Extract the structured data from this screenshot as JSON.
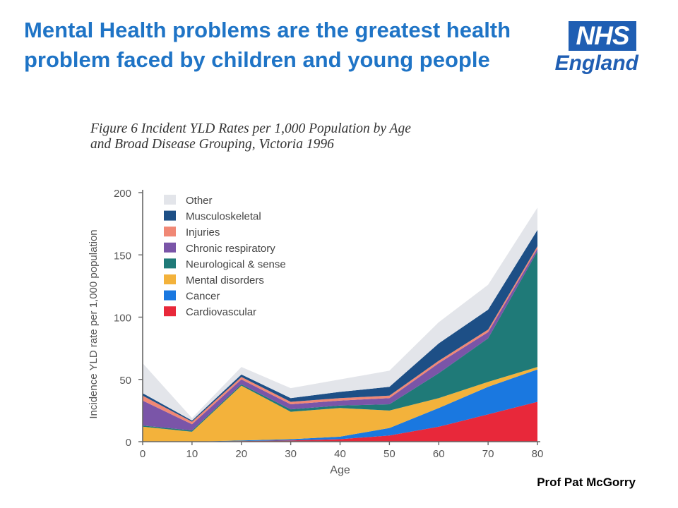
{
  "slide": {
    "title": "Mental Health problems are the greatest health problem faced by children and young people",
    "credit": "Prof Pat McGorry"
  },
  "logo": {
    "box_text": "NHS",
    "sub_text": "England",
    "color": "#1f5eb3"
  },
  "chart_data": {
    "type": "area",
    "stacked": true,
    "title": "Figure 6 Incident YLD Rates per 1,000 Population by Age and Broad Disease Grouping, Victoria 1996",
    "title_lines": [
      "Figure 6 Incident YLD Rates per 1,000 Population by Age",
      "and Broad Disease Grouping, Victoria 1996"
    ],
    "xlabel": "Age",
    "ylabel": "Incidence YLD rate per 1,000 population",
    "x": [
      0,
      10,
      20,
      30,
      40,
      50,
      60,
      70,
      80
    ],
    "xlim": [
      0,
      80
    ],
    "ylim": [
      0,
      200
    ],
    "xticks": [
      0,
      10,
      20,
      30,
      40,
      50,
      60,
      70,
      80
    ],
    "yticks": [
      0,
      50,
      100,
      150,
      200
    ],
    "grid": false,
    "legend_position": "top-left",
    "series": [
      {
        "name": "Cardiovascular",
        "color": "#e8283a",
        "values": [
          0,
          0,
          0.5,
          1,
          2,
          5,
          12,
          22,
          32
        ]
      },
      {
        "name": "Cancer",
        "color": "#1a78e0",
        "values": [
          0,
          0,
          0.5,
          1,
          2,
          6,
          15,
          22,
          26
        ]
      },
      {
        "name": "Mental disorders",
        "color": "#f3b23b",
        "values": [
          12,
          8,
          44,
          22,
          23,
          14,
          8,
          4,
          2
        ]
      },
      {
        "name": "Neurological & sense",
        "color": "#1f7a78",
        "values": [
          1,
          1,
          1,
          2,
          2,
          5,
          20,
          35,
          93
        ]
      },
      {
        "name": "Chronic respiratory",
        "color": "#7a55a8",
        "values": [
          20,
          5,
          4,
          4,
          4,
          5,
          8,
          5,
          2
        ]
      },
      {
        "name": "Injuries",
        "color": "#f08875",
        "values": [
          4,
          2,
          2,
          2,
          2,
          2,
          2,
          2,
          2
        ]
      },
      {
        "name": "Musculoskeletal",
        "color": "#1d4f86",
        "values": [
          2,
          1,
          2,
          3,
          5,
          7,
          14,
          16,
          13
        ]
      },
      {
        "name": "Other",
        "color": "#e3e5ea",
        "values": [
          24,
          2,
          6,
          8,
          10,
          13,
          17,
          20,
          18
        ]
      }
    ],
    "legend_order": [
      "Other",
      "Musculoskeletal",
      "Injuries",
      "Chronic respiratory",
      "Neurological & sense",
      "Mental disorders",
      "Cancer",
      "Cardiovascular"
    ]
  }
}
